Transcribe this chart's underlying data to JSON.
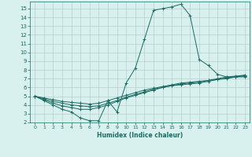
{
  "title": "",
  "xlabel": "Humidex (Indice chaleur)",
  "bg_color": "#d8f0ee",
  "line_color": "#1a6b63",
  "grid_color": "#b8cece",
  "xlim": [
    -0.5,
    23.5
  ],
  "ylim": [
    2,
    15.8
  ],
  "xticks": [
    0,
    1,
    2,
    3,
    4,
    5,
    6,
    7,
    8,
    9,
    10,
    11,
    12,
    13,
    14,
    15,
    16,
    17,
    18,
    19,
    20,
    21,
    22,
    23
  ],
  "yticks": [
    2,
    3,
    4,
    5,
    6,
    7,
    8,
    9,
    10,
    11,
    12,
    13,
    14,
    15
  ],
  "line1_x": [
    0,
    1,
    2,
    3,
    4,
    5,
    6,
    7,
    8,
    9,
    10,
    11,
    12,
    13,
    14,
    15,
    16,
    17,
    18,
    19,
    20,
    21,
    22,
    23
  ],
  "line1_y": [
    5.0,
    4.5,
    4.0,
    3.5,
    3.2,
    2.5,
    2.2,
    2.2,
    4.5,
    3.2,
    6.5,
    8.2,
    11.5,
    14.8,
    15.0,
    15.2,
    15.5,
    14.2,
    9.2,
    8.5,
    7.5,
    7.2,
    7.2,
    7.2
  ],
  "line2_x": [
    0,
    1,
    2,
    3,
    4,
    5,
    6,
    7,
    8,
    9,
    10,
    11,
    12,
    13,
    14,
    15,
    16,
    17,
    18,
    19,
    20,
    21,
    22,
    23
  ],
  "line2_y": [
    5.0,
    4.6,
    4.2,
    3.9,
    3.7,
    3.5,
    3.5,
    3.7,
    4.0,
    4.4,
    4.8,
    5.1,
    5.4,
    5.7,
    6.0,
    6.2,
    6.4,
    6.5,
    6.6,
    6.8,
    7.0,
    7.2,
    7.3,
    7.4
  ],
  "line3_x": [
    0,
    1,
    2,
    3,
    4,
    5,
    6,
    7,
    8,
    9,
    10,
    11,
    12,
    13,
    14,
    15,
    16,
    17,
    18,
    19,
    20,
    21,
    22,
    23
  ],
  "line3_y": [
    5.0,
    4.7,
    4.4,
    4.2,
    4.0,
    3.9,
    3.8,
    3.9,
    4.2,
    4.5,
    4.9,
    5.2,
    5.5,
    5.8,
    6.0,
    6.2,
    6.3,
    6.4,
    6.5,
    6.7,
    6.9,
    7.0,
    7.2,
    7.3
  ],
  "line4_x": [
    0,
    1,
    2,
    3,
    4,
    5,
    6,
    7,
    8,
    9,
    10,
    11,
    12,
    13,
    14,
    15,
    16,
    17,
    18,
    19,
    20,
    21,
    22,
    23
  ],
  "line4_y": [
    5.0,
    4.8,
    4.6,
    4.4,
    4.3,
    4.2,
    4.1,
    4.2,
    4.5,
    4.8,
    5.1,
    5.4,
    5.7,
    5.9,
    6.1,
    6.3,
    6.5,
    6.6,
    6.7,
    6.8,
    6.9,
    7.1,
    7.2,
    7.4
  ]
}
